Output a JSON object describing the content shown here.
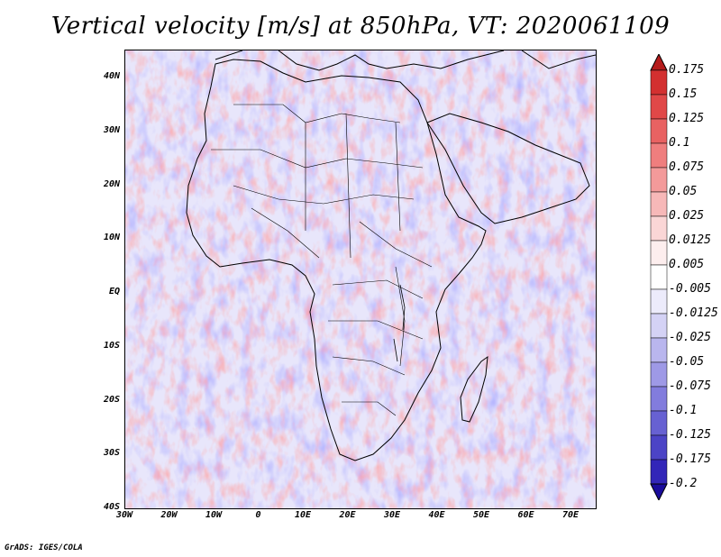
{
  "title": "Vertical velocity [m/s] at 850hPa, VT: 2020061109",
  "lat_labels": [
    "40N",
    "30N",
    "20N",
    "10N",
    "EQ",
    "10S",
    "20S",
    "30S",
    "40S"
  ],
  "lon_labels": [
    "30W",
    "20W",
    "10W",
    "0",
    "10E",
    "20E",
    "30E",
    "40E",
    "50E",
    "60E",
    "70E"
  ],
  "colorbar": {
    "labels": [
      "0.175",
      "0.15",
      "0.125",
      "0.1",
      "0.075",
      "0.05",
      "0.025",
      "0.0125",
      "0.005",
      "-0.005",
      "-0.0125",
      "-0.025",
      "-0.05",
      "-0.075",
      "-0.1",
      "-0.125",
      "-0.175",
      "-0.2"
    ],
    "colors": [
      "#b51c1c",
      "#d33030",
      "#e04848",
      "#e86262",
      "#ef7e7e",
      "#f39a9a",
      "#f7b8b8",
      "#fad6d6",
      "#fdeeee",
      "#ffffff",
      "#ecebfb",
      "#d4d2f5",
      "#b9b6ee",
      "#9e99e6",
      "#827cdd",
      "#6761d2",
      "#4c44c6",
      "#3226b8",
      "#1a0c9c"
    ]
  },
  "footer": "GrADS: IGES/COLA"
}
